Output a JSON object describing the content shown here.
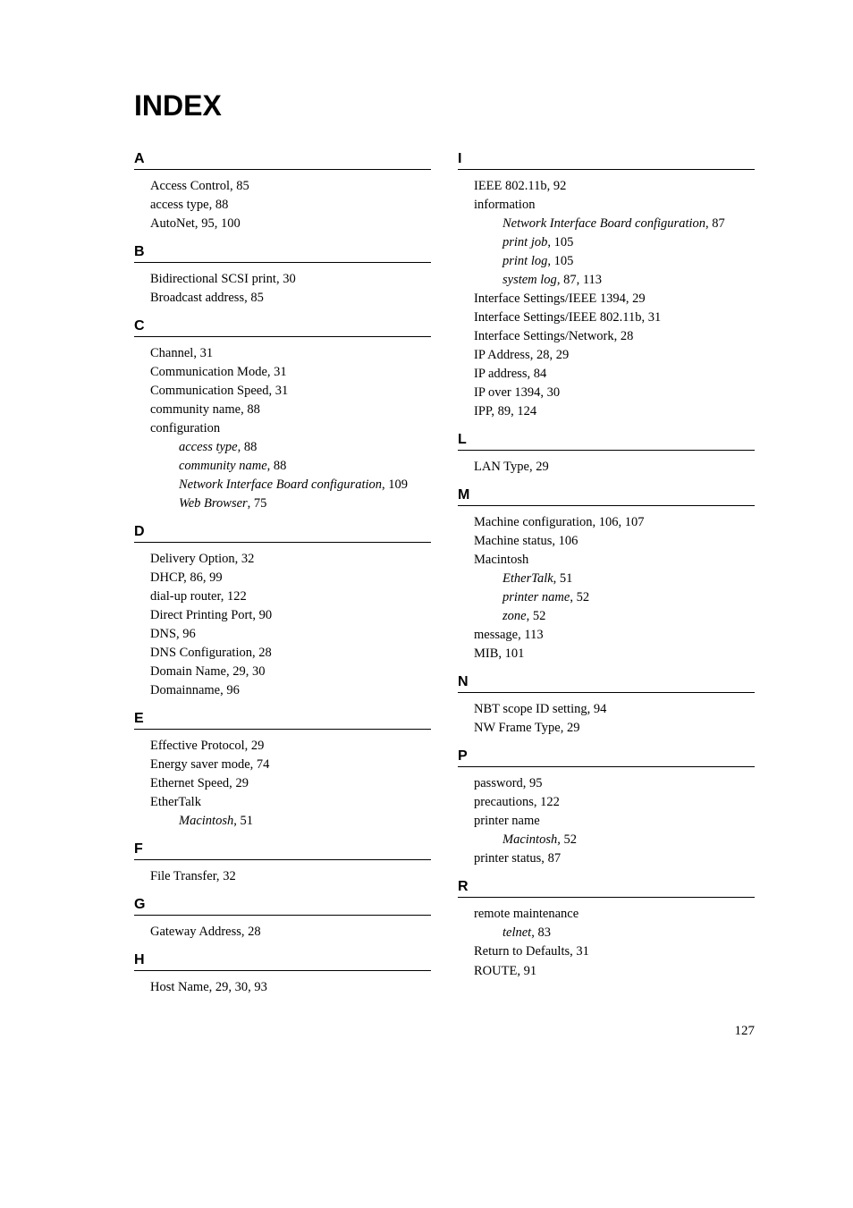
{
  "title": "INDEX",
  "pageNumber": "127",
  "columns": [
    {
      "sections": [
        {
          "letter": "A",
          "entries": [
            {
              "text": "Access Control,",
              "pages": "85"
            },
            {
              "text": "access type,",
              "pages": "88"
            },
            {
              "text": "AutoNet,",
              "pages": "95, 100"
            }
          ]
        },
        {
          "letter": "B",
          "entries": [
            {
              "text": "Bidirectional SCSI print,",
              "pages": "30"
            },
            {
              "text": "Broadcast address,",
              "pages": "85"
            }
          ]
        },
        {
          "letter": "C",
          "entries": [
            {
              "text": "Channel,",
              "pages": "31"
            },
            {
              "text": "Communication Mode,",
              "pages": "31"
            },
            {
              "text": "Communication Speed,",
              "pages": "31"
            },
            {
              "text": "community name,",
              "pages": "88"
            },
            {
              "text": "configuration",
              "pages": ""
            },
            {
              "sub": true,
              "text": "access type",
              "pages": "88"
            },
            {
              "sub": true,
              "text": "community name",
              "pages": "88"
            },
            {
              "sub": true,
              "text": "Network Interface Board configuration",
              "pages": "109"
            },
            {
              "sub": true,
              "text": "Web Browser",
              "pages": "75"
            }
          ]
        },
        {
          "letter": "D",
          "entries": [
            {
              "text": "Delivery Option,",
              "pages": "32"
            },
            {
              "text": "DHCP,",
              "pages": "86, 99"
            },
            {
              "text": "dial-up router,",
              "pages": "122"
            },
            {
              "text": "Direct Printing Port,",
              "pages": "90"
            },
            {
              "text": "DNS,",
              "pages": "96"
            },
            {
              "text": "DNS Configuration,",
              "pages": "28"
            },
            {
              "text": "Domain Name,",
              "pages": "29, 30"
            },
            {
              "text": "Domainname,",
              "pages": "96"
            }
          ]
        },
        {
          "letter": "E",
          "entries": [
            {
              "text": "Effective Protocol,",
              "pages": "29"
            },
            {
              "text": "Energy saver mode,",
              "pages": "74"
            },
            {
              "text": "Ethernet Speed,",
              "pages": "29"
            },
            {
              "text": "EtherTalk",
              "pages": ""
            },
            {
              "sub": true,
              "text": "Macintosh",
              "pages": "51"
            }
          ]
        },
        {
          "letter": "F",
          "entries": [
            {
              "text": "File Transfer,",
              "pages": "32"
            }
          ]
        },
        {
          "letter": "G",
          "entries": [
            {
              "text": "Gateway Address,",
              "pages": "28"
            }
          ]
        },
        {
          "letter": "H",
          "entries": [
            {
              "text": "Host Name,",
              "pages": "29, 30, 93"
            }
          ]
        }
      ]
    },
    {
      "sections": [
        {
          "letter": "I",
          "entries": [
            {
              "text": "IEEE 802.11b,",
              "pages": "92"
            },
            {
              "text": "information",
              "pages": ""
            },
            {
              "sub": true,
              "text": "Network Interface Board configuration",
              "pages": "87"
            },
            {
              "sub": true,
              "text": "print job",
              "pages": "105"
            },
            {
              "sub": true,
              "text": "print log",
              "pages": "105"
            },
            {
              "sub": true,
              "text": "system log",
              "pages": "87, 113"
            },
            {
              "text": "Interface Settings/IEEE 1394,",
              "pages": "29"
            },
            {
              "text": "Interface Settings/IEEE 802.11b,",
              "pages": "31"
            },
            {
              "text": "Interface Settings/Network,",
              "pages": "28"
            },
            {
              "text": "IP Address,",
              "pages": "28, 29"
            },
            {
              "text": "IP address,",
              "pages": "84"
            },
            {
              "text": "IP over 1394,",
              "pages": "30"
            },
            {
              "text": "IPP,",
              "pages": "89, 124"
            }
          ]
        },
        {
          "letter": "L",
          "entries": [
            {
              "text": "LAN Type,",
              "pages": "29"
            }
          ]
        },
        {
          "letter": "M",
          "entries": [
            {
              "text": "Machine configuration,",
              "pages": "106, 107"
            },
            {
              "text": "Machine status,",
              "pages": "106"
            },
            {
              "text": "Macintosh",
              "pages": ""
            },
            {
              "sub": true,
              "text": "EtherTalk",
              "pages": "51"
            },
            {
              "sub": true,
              "text": "printer name",
              "pages": "52"
            },
            {
              "sub": true,
              "text": "zone",
              "pages": "52"
            },
            {
              "text": "message,",
              "pages": "113"
            },
            {
              "text": "MIB,",
              "pages": "101"
            }
          ]
        },
        {
          "letter": "N",
          "entries": [
            {
              "text": "NBT scope ID setting,",
              "pages": "94"
            },
            {
              "text": "NW Frame Type,",
              "pages": "29"
            }
          ]
        },
        {
          "letter": "P",
          "entries": [
            {
              "text": "password,",
              "pages": "95"
            },
            {
              "text": "precautions,",
              "pages": "122"
            },
            {
              "text": "printer name",
              "pages": ""
            },
            {
              "sub": true,
              "text": "Macintosh",
              "pages": "52"
            },
            {
              "text": "printer status,",
              "pages": "87"
            }
          ]
        },
        {
          "letter": "R",
          "entries": [
            {
              "text": "remote maintenance",
              "pages": ""
            },
            {
              "sub": true,
              "text": "telnet",
              "pages": "83"
            },
            {
              "text": "Return to Defaults,",
              "pages": "31"
            },
            {
              "text": "ROUTE,",
              "pages": "91"
            }
          ]
        }
      ]
    }
  ]
}
